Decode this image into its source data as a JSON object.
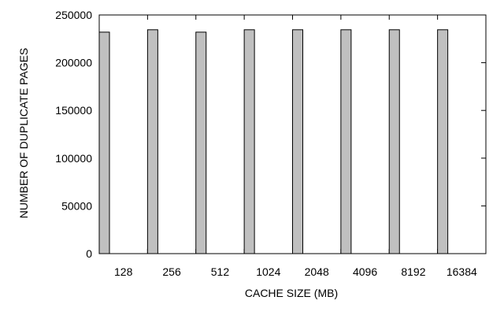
{
  "chart_data": {
    "type": "bar",
    "title": "",
    "xlabel": "CACHE SIZE (MB)",
    "ylabel": "NUMBER OF DUPLICATE PAGES",
    "categories": [
      "128",
      "256",
      "512",
      "1024",
      "2048",
      "4096",
      "8192",
      "16384"
    ],
    "values": [
      232000,
      234500,
      232000,
      234500,
      234500,
      234500,
      234500,
      234500
    ],
    "ylim": [
      0,
      250000
    ],
    "yticks": [
      "0",
      "50000",
      "100000",
      "150000",
      "200000",
      "250000"
    ],
    "grid": false,
    "legend": "none",
    "colors": {
      "bar_fill": "#c0c0c0",
      "bar_stroke": "#000000",
      "axis": "#000000"
    }
  }
}
